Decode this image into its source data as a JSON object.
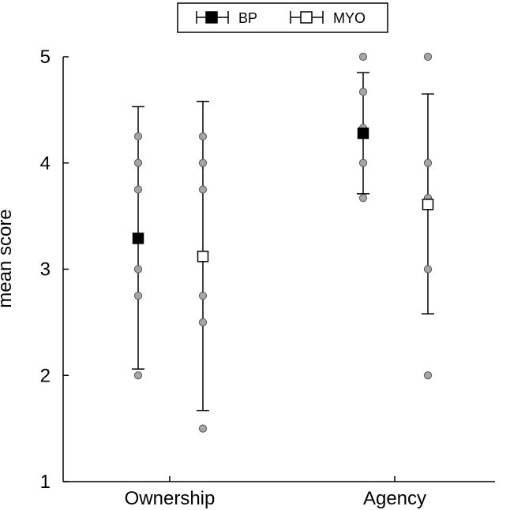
{
  "chart_data": {
    "type": "scatter",
    "title": "",
    "xlabel": "",
    "ylabel": "mean score",
    "categories": [
      "Ownership",
      "Agency"
    ],
    "yticks": [
      "1",
      "2",
      "3",
      "4",
      "5"
    ],
    "ylim": [
      1,
      5
    ],
    "grid": false,
    "legend_position": "top-center",
    "colors": {
      "bp_marker": "#000000",
      "myo_marker": "#ffffff",
      "points": "#a6a6a6",
      "axis": "#000000"
    },
    "series": [
      {
        "name": "BP",
        "mean": [
          3.29,
          4.28
        ],
        "err_low": [
          2.06,
          3.71
        ],
        "err_high": [
          4.53,
          4.85
        ],
        "points": [
          [
            2.0,
            2.75,
            3.0,
            3.75,
            4.0,
            4.25
          ],
          [
            3.67,
            4.0,
            4.33,
            4.67,
            5.0
          ]
        ]
      },
      {
        "name": "MYO",
        "mean": [
          3.12,
          3.61
        ],
        "err_low": [
          1.67,
          2.58
        ],
        "err_high": [
          4.58,
          4.65
        ],
        "points": [
          [
            1.5,
            2.5,
            2.75,
            3.75,
            4.0,
            4.25
          ],
          [
            2.0,
            3.0,
            3.67,
            4.0,
            5.0
          ]
        ]
      }
    ]
  }
}
